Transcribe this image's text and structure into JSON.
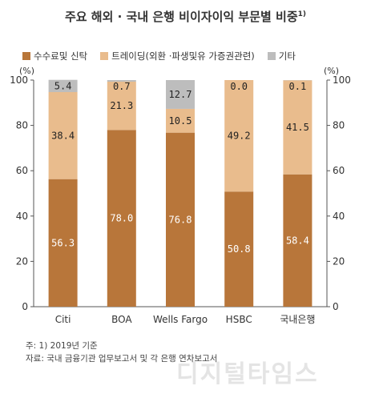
{
  "title": "주요 해외 · 국내 은행 비이자이익 부문별 비중",
  "title_note_mark": "1)",
  "notes": {
    "note": "주: 1) 2019년 기준",
    "source": "자료: 국내 금융기관 업무보고서 및 각 은행 연차보고서"
  },
  "watermark": "디지털타임스",
  "chart_data": {
    "type": "bar",
    "stacked": true,
    "categories": [
      "Citi",
      "BOA",
      "Wells Fargo",
      "HSBC",
      "국내은행"
    ],
    "series": [
      {
        "name": "수수료및 신탁",
        "values": [
          56.3,
          78.0,
          76.8,
          50.8,
          58.4
        ],
        "color": "#b8763a",
        "label_color": "#ffffff"
      },
      {
        "name": "트레이딩(외환 ·파생및유 가증권관련)",
        "values": [
          38.4,
          21.3,
          10.5,
          49.2,
          41.5
        ],
        "color": "#e9bc8d",
        "label_color": "#222222"
      },
      {
        "name": "기타",
        "values": [
          5.4,
          0.7,
          12.7,
          0.0,
          0.1
        ],
        "color": "#bdbdbd",
        "label_color": "#222222"
      }
    ],
    "ylim": [
      0,
      100
    ],
    "yticks": [
      0,
      20,
      40,
      60,
      80,
      100
    ],
    "ylabel_left": "(%)",
    "ylabel_right": "(%)",
    "legend_position": "top",
    "grid": false
  }
}
